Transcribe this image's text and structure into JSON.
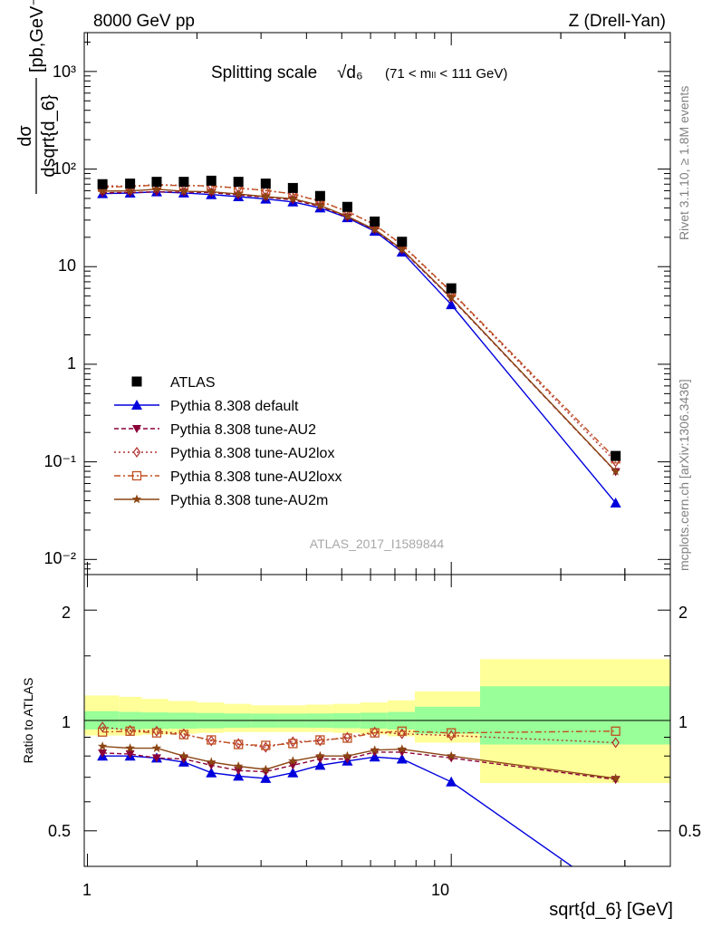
{
  "header": {
    "left_label": "8000 GeV pp",
    "right_label": "Z (Drell-Yan)"
  },
  "side_labels": {
    "version": "Rivet 3.1.10, ≥ 1.8M events",
    "source": "mcplots.cern.ch [arXiv:1306.3436]"
  },
  "main_plot": {
    "title": "Splitting scale",
    "title_symbol": "√d₆",
    "title_range": "(71 < mₗₗ < 111 GeV)",
    "ylabel_num": "dσ",
    "ylabel_den": "dsqrt{d_6}",
    "ylabel_unit": "[pb,GeV⁻¹]",
    "analysis_tag": "ATLAS_2017_I1589844",
    "ytick_labels": [
      "10⁻²",
      "10⁻¹",
      "1",
      "10",
      "10²",
      "10³"
    ]
  },
  "ratio_plot": {
    "ylabel": "Ratio to ATLAS",
    "ytick_labels": [
      "0.5",
      "1",
      "2"
    ]
  },
  "x_axis": {
    "label": "sqrt{d_6} [GeV]",
    "tick_labels": [
      "1",
      "10"
    ]
  },
  "legend": [
    {
      "label": "ATLAS"
    },
    {
      "label": "Pythia 8.308 default"
    },
    {
      "label": "Pythia 8.308 tune-AU2"
    },
    {
      "label": "Pythia 8.308 tune-AU2lox"
    },
    {
      "label": "Pythia 8.308 tune-AU2loxx"
    },
    {
      "label": "Pythia 8.308 tune-AU2m"
    }
  ],
  "colors": {
    "data": "#000000",
    "default": "#0000dd",
    "au2": "#8b0038",
    "au2lox": "#b03030",
    "au2loxx": "#c05020",
    "au2m": "#8b4513",
    "band_inner": "#99ff99",
    "band_outer": "#ffff99"
  },
  "chart_data": {
    "type": "line",
    "x_scale": "log",
    "y_scale": "log",
    "xlim": [
      0.98,
      40
    ],
    "ylim": [
      0.007,
      2500
    ],
    "ratio_ylim": [
      0.4,
      2.5
    ],
    "bin_edges": [
      0.98,
      1.22,
      1.41,
      1.67,
      2.0,
      2.37,
      2.82,
      3.35,
      3.98,
      4.73,
      5.62,
      6.68,
      7.94,
      12.0,
      40.0
    ],
    "x": [
      1.1,
      1.31,
      1.55,
      1.84,
      2.19,
      2.6,
      3.09,
      3.67,
      4.36,
      5.18,
      6.16,
      7.32,
      10.0,
      28.3
    ],
    "series": [
      {
        "name": "ATLAS",
        "key": "data",
        "marker": "square",
        "values": [
          70,
          71,
          74,
          74,
          76,
          74,
          71,
          64,
          53,
          41,
          29,
          18,
          6.0,
          0.115
        ]
      },
      {
        "name": "Pythia 8.308 default",
        "key": "default",
        "marker": "triangle-up",
        "dash": "",
        "ratio": [
          0.8,
          0.8,
          0.79,
          0.77,
          0.72,
          0.705,
          0.695,
          0.72,
          0.755,
          0.775,
          0.795,
          0.785,
          0.68,
          0.33
        ]
      },
      {
        "name": "Pythia 8.308 tune-AU2",
        "key": "au2",
        "marker": "triangle-down",
        "dash": "5,3",
        "ratio": [
          0.815,
          0.81,
          0.79,
          0.785,
          0.755,
          0.73,
          0.725,
          0.755,
          0.785,
          0.785,
          0.82,
          0.82,
          0.79,
          0.69
        ]
      },
      {
        "name": "Pythia 8.308 tune-AU2lox",
        "key": "au2lox",
        "marker": "diamond",
        "dash": "2,3",
        "ratio": [
          0.96,
          0.94,
          0.935,
          0.92,
          0.88,
          0.865,
          0.845,
          0.875,
          0.88,
          0.9,
          0.93,
          0.92,
          0.91,
          0.87
        ]
      },
      {
        "name": "Pythia 8.308 tune-AU2loxx",
        "key": "au2loxx",
        "marker": "square-open",
        "dash": "7,3,2,3",
        "ratio": [
          0.93,
          0.935,
          0.925,
          0.915,
          0.885,
          0.86,
          0.855,
          0.865,
          0.885,
          0.895,
          0.925,
          0.935,
          0.925,
          0.935
        ]
      },
      {
        "name": "Pythia 8.308 tune-AU2m",
        "key": "au2m",
        "marker": "star",
        "dash": "",
        "ratio": [
          0.85,
          0.84,
          0.84,
          0.8,
          0.77,
          0.75,
          0.735,
          0.775,
          0.8,
          0.8,
          0.83,
          0.835,
          0.8,
          0.695
        ]
      }
    ],
    "uncertainty_band": {
      "inner_lo": [
        0.945,
        0.945,
        0.948,
        0.95,
        0.952,
        0.955,
        0.956,
        0.956,
        0.955,
        0.953,
        0.95,
        0.945,
        0.92,
        0.86
      ],
      "inner_hi": [
        1.06,
        1.055,
        1.052,
        1.05,
        1.048,
        1.045,
        1.044,
        1.044,
        1.045,
        1.047,
        1.05,
        1.055,
        1.09,
        1.24
      ],
      "outer_lo": [
        0.91,
        0.91,
        0.915,
        0.92,
        0.925,
        0.93,
        0.93,
        0.93,
        0.93,
        0.925,
        0.915,
        0.905,
        0.87,
        0.675
      ],
      "outer_hi": [
        1.17,
        1.16,
        1.145,
        1.13,
        1.12,
        1.11,
        1.1,
        1.1,
        1.105,
        1.11,
        1.12,
        1.135,
        1.2,
        1.47
      ]
    }
  }
}
